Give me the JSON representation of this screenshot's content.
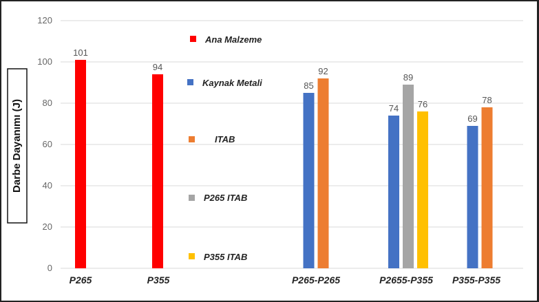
{
  "chart_data": {
    "type": "bar",
    "ylabel": "Darbe Dayanımı (J)",
    "ylim": [
      0,
      120
    ],
    "yticks": [
      "0",
      "20",
      "40",
      "60",
      "80",
      "100",
      "120"
    ],
    "grid": true,
    "legend_placement": "inside-middle",
    "categories": [
      "P265",
      "P355",
      "P265-P265",
      "P2655-P355",
      "P355-P355"
    ],
    "series": [
      {
        "name": "Ana Malzeme",
        "color": "#ff0000",
        "values": [
          101,
          94,
          null,
          null,
          null
        ]
      },
      {
        "name": "Kaynak Metali",
        "color": "#4472c4",
        "values": [
          null,
          null,
          85,
          74,
          69
        ]
      },
      {
        "name": "ITAB",
        "color": "#ed7d31",
        "values": [
          null,
          null,
          92,
          null,
          78
        ]
      },
      {
        "name": "P265 ITAB",
        "color": "#a5a5a5",
        "values": [
          null,
          null,
          null,
          89,
          null
        ]
      },
      {
        "name": "P355 ITAB",
        "color": "#ffc000",
        "values": [
          null,
          null,
          null,
          76,
          null
        ]
      }
    ]
  }
}
